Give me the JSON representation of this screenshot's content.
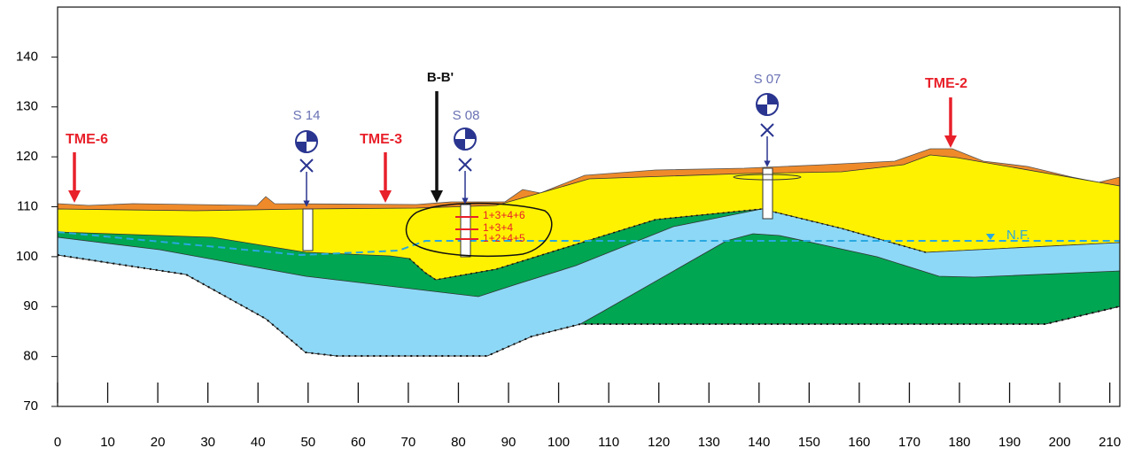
{
  "axes": {
    "xlim": [
      0,
      212
    ],
    "ylim": [
      70,
      150
    ],
    "xticks": [
      0,
      10,
      20,
      30,
      40,
      50,
      60,
      70,
      80,
      90,
      100,
      110,
      120,
      130,
      140,
      150,
      160,
      170,
      180,
      190,
      200,
      210
    ],
    "yticks": [
      70,
      80,
      90,
      100,
      110,
      120,
      130,
      140
    ]
  },
  "labels": {
    "tme6": "TME-6",
    "tme3": "TME-3",
    "tme2": "TME-2",
    "section": "B-B'",
    "boreholes": [
      "S 14",
      "S 08",
      "S 07"
    ],
    "samples": [
      "1+3+4+6",
      "1+3+4",
      "1+2+4+5"
    ],
    "water_table": "N.F."
  }
}
